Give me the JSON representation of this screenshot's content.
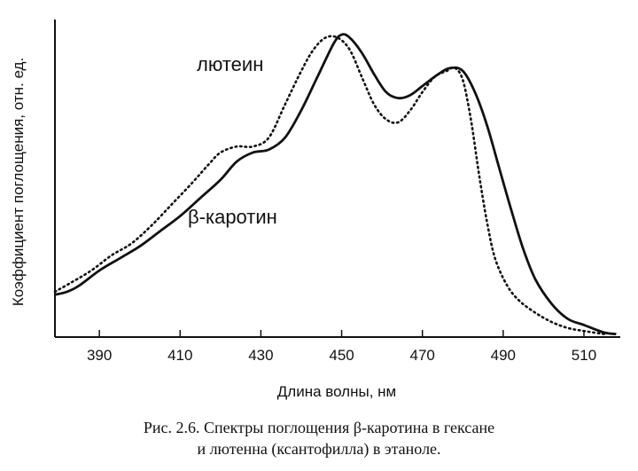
{
  "chart_data": {
    "type": "line",
    "xlabel": "Длина волны, нм",
    "ylabel": "Коэффициент поглощения, отн. ед.",
    "xlim": [
      379,
      519
    ],
    "ylim": [
      0,
      1.05
    ],
    "x_ticks": [
      "390",
      "410",
      "430",
      "450",
      "470",
      "490",
      "510"
    ],
    "x_tick_values": [
      390,
      410,
      430,
      450,
      470,
      490,
      510
    ],
    "grid": false,
    "legend": "none",
    "series": [
      {
        "name": "β-каротин",
        "style": "solid",
        "color": "#111111",
        "points": [
          [
            379,
            0.14
          ],
          [
            382,
            0.15
          ],
          [
            385,
            0.17
          ],
          [
            390,
            0.22
          ],
          [
            395,
            0.26
          ],
          [
            400,
            0.3
          ],
          [
            405,
            0.35
          ],
          [
            410,
            0.4
          ],
          [
            415,
            0.46
          ],
          [
            420,
            0.52
          ],
          [
            424,
            0.58
          ],
          [
            428,
            0.61
          ],
          [
            432,
            0.62
          ],
          [
            436,
            0.66
          ],
          [
            440,
            0.75
          ],
          [
            444,
            0.86
          ],
          [
            448,
            0.97
          ],
          [
            450,
            1.0
          ],
          [
            452,
            0.99
          ],
          [
            455,
            0.94
          ],
          [
            458,
            0.87
          ],
          [
            461,
            0.81
          ],
          [
            464,
            0.79
          ],
          [
            467,
            0.8
          ],
          [
            470,
            0.83
          ],
          [
            474,
            0.87
          ],
          [
            477,
            0.89
          ],
          [
            480,
            0.88
          ],
          [
            483,
            0.81
          ],
          [
            486,
            0.7
          ],
          [
            489,
            0.56
          ],
          [
            492,
            0.42
          ],
          [
            495,
            0.29
          ],
          [
            498,
            0.19
          ],
          [
            502,
            0.11
          ],
          [
            506,
            0.06
          ],
          [
            510,
            0.04
          ],
          [
            515,
            0.015
          ],
          [
            518,
            0.01
          ]
        ]
      },
      {
        "name": "лютеин",
        "style": "dotted",
        "color": "#111111",
        "points": [
          [
            379,
            0.15
          ],
          [
            383,
            0.18
          ],
          [
            388,
            0.22
          ],
          [
            393,
            0.27
          ],
          [
            398,
            0.31
          ],
          [
            403,
            0.37
          ],
          [
            408,
            0.44
          ],
          [
            413,
            0.51
          ],
          [
            417,
            0.57
          ],
          [
            420,
            0.61
          ],
          [
            424,
            0.63
          ],
          [
            428,
            0.63
          ],
          [
            432,
            0.66
          ],
          [
            436,
            0.77
          ],
          [
            440,
            0.88
          ],
          [
            443,
            0.95
          ],
          [
            446,
            0.99
          ],
          [
            449,
            0.99
          ],
          [
            452,
            0.95
          ],
          [
            455,
            0.86
          ],
          [
            458,
            0.77
          ],
          [
            461,
            0.72
          ],
          [
            464,
            0.71
          ],
          [
            467,
            0.75
          ],
          [
            470,
            0.81
          ],
          [
            473,
            0.86
          ],
          [
            476,
            0.88
          ],
          [
            478,
            0.89
          ],
          [
            480,
            0.85
          ],
          [
            482,
            0.72
          ],
          [
            484,
            0.54
          ],
          [
            486,
            0.38
          ],
          [
            488,
            0.26
          ],
          [
            491,
            0.17
          ],
          [
            494,
            0.12
          ],
          [
            498,
            0.08
          ],
          [
            502,
            0.05
          ],
          [
            506,
            0.03
          ],
          [
            510,
            0.02
          ],
          [
            515,
            0.01
          ]
        ]
      }
    ],
    "annotations": [
      {
        "text": "лютеин",
        "series": "лютеин"
      },
      {
        "text": "β-каротин",
        "series": "β-каротин"
      }
    ]
  },
  "caption": {
    "line1": "Рис. 2.6. Спектры поглощения β-каротина в гексане",
    "line2": "и лютенна (ксантофилла) в этаноле."
  }
}
